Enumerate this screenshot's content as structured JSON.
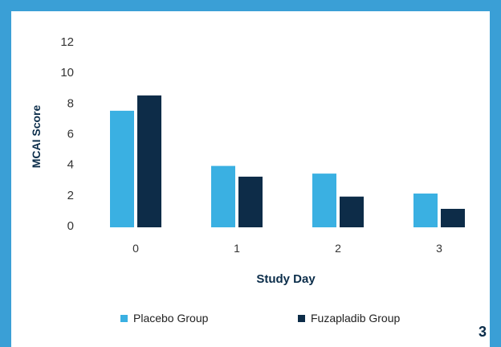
{
  "chart_data": {
    "type": "bar",
    "categories": [
      "0",
      "1",
      "2",
      "3"
    ],
    "series": [
      {
        "name": "Placebo Group",
        "values": [
          7.5,
          3.9,
          3.4,
          2.1
        ],
        "color": "#3ab0e2"
      },
      {
        "name": "Fuzapladib Group",
        "values": [
          8.5,
          3.2,
          1.9,
          1.1
        ],
        "color": "#0d2c48"
      }
    ],
    "title": "",
    "xlabel": "Study Day",
    "ylabel": "MCAI Score",
    "ylim": [
      0,
      12
    ],
    "yticks": [
      "0",
      "2",
      "4",
      "6",
      "8",
      "10",
      "12"
    ],
    "grid": false,
    "legend": "bottom"
  },
  "page_number": "3",
  "colors": {
    "frame": "#3a9fd6",
    "axis_text": "#333333",
    "label_text": "#0b2d4a"
  }
}
